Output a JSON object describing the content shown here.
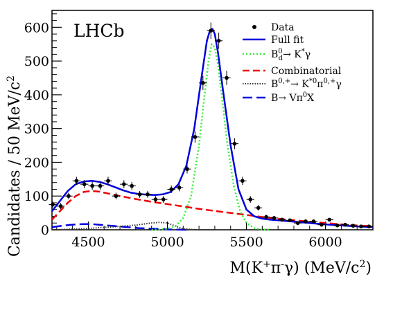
{
  "chart_data": {
    "type": "line",
    "experiment_label": "LHCb",
    "xlabel": "M(K⁺π⁻γ) (MeV/c²)",
    "ylabel": "Candidates / 50 MeV/c²",
    "xlim": [
      4270,
      6300
    ],
    "ylim": [
      0,
      650
    ],
    "x_ticks": [
      4500,
      5000,
      5500,
      6000
    ],
    "y_ticks": [
      0,
      100,
      200,
      300,
      400,
      500,
      600
    ],
    "legend_position": "top-right",
    "grid": false,
    "points": {
      "name": "Data",
      "x": [
        4275,
        4325,
        4375,
        4425,
        4475,
        4525,
        4575,
        4625,
        4675,
        4725,
        4775,
        4825,
        4875,
        4925,
        4975,
        5025,
        5075,
        5125,
        5175,
        5225,
        5275,
        5325,
        5375,
        5425,
        5475,
        5525,
        5575,
        5625,
        5675,
        5725,
        5775,
        5825,
        5875,
        5925,
        5975,
        6025,
        6075,
        6125,
        6175,
        6225,
        6275
      ],
      "y": [
        75,
        70,
        100,
        145,
        135,
        130,
        130,
        145,
        100,
        135,
        130,
        105,
        105,
        90,
        90,
        120,
        125,
        180,
        275,
        435,
        590,
        560,
        450,
        255,
        145,
        90,
        65,
        38,
        35,
        30,
        28,
        20,
        25,
        25,
        15,
        30,
        13,
        15,
        12,
        10,
        10
      ],
      "err": [
        9,
        9,
        10,
        12,
        12,
        12,
        12,
        12,
        10,
        12,
        12,
        10,
        10,
        10,
        10,
        11,
        11,
        13,
        17,
        21,
        24,
        24,
        21,
        16,
        12,
        10,
        8,
        6,
        6,
        6,
        5,
        5,
        5,
        5,
        4,
        5,
        4,
        4,
        4,
        3,
        3
      ]
    },
    "series": [
      {
        "name": "Full fit",
        "color": "#0000dd",
        "style": "solid",
        "x": [
          4270,
          4320,
          4370,
          4420,
          4470,
          4520,
          4570,
          4620,
          4670,
          4720,
          4770,
          4820,
          4870,
          4920,
          4970,
          5020,
          5070,
          5120,
          5170,
          5220,
          5250,
          5270,
          5285,
          5300,
          5320,
          5350,
          5400,
          5450,
          5500,
          5550,
          5600,
          5650,
          5700,
          5800,
          5900,
          6000,
          6100,
          6200,
          6300
        ],
        "y": [
          55,
          85,
          115,
          135,
          143,
          145,
          142,
          135,
          126,
          117,
          110,
          106,
          104,
          103,
          105,
          112,
          135,
          190,
          300,
          465,
          560,
          592,
          595,
          580,
          525,
          420,
          250,
          120,
          60,
          40,
          33,
          30,
          28,
          24,
          20,
          16,
          13,
          10,
          8
        ]
      },
      {
        "name": "B⁰ₔ→ K*γ",
        "color": "#33ee33",
        "style": "dotted",
        "x": [
          4900,
          4950,
          5000,
          5050,
          5100,
          5150,
          5200,
          5230,
          5260,
          5280,
          5300,
          5320,
          5350,
          5380,
          5420,
          5460,
          5500,
          5550,
          5600,
          5650
        ],
        "y": [
          0,
          1,
          3,
          10,
          35,
          100,
          250,
          380,
          500,
          550,
          540,
          490,
          375,
          250,
          130,
          55,
          20,
          5,
          1,
          0
        ]
      },
      {
        "name": "Combinatorial",
        "color": "#ee0000",
        "style": "dashed",
        "x": [
          4270,
          4320,
          4370,
          4420,
          4470,
          4520,
          4570,
          4620,
          4700,
          4800,
          4900,
          5000,
          5100,
          5200,
          5300,
          5400,
          5500,
          5600,
          5700,
          5800,
          5900,
          6000,
          6100,
          6200,
          6300
        ],
        "y": [
          30,
          55,
          80,
          100,
          112,
          115,
          113,
          108,
          100,
          91,
          83,
          76,
          69,
          62,
          56,
          50,
          44,
          38,
          33,
          28,
          24,
          20,
          16,
          13,
          10
        ]
      },
      {
        "name": "B⁰‧⁺→ K*⁰π⁰‧⁺γ",
        "color": "#333333",
        "style": "dotted",
        "x": [
          4270,
          4400,
          4500,
          4600,
          4700,
          4800,
          4850,
          4900,
          4950,
          5000,
          5030,
          5060,
          5100,
          5150,
          5200,
          5300
        ],
        "y": [
          0,
          2,
          4,
          7,
          10,
          14,
          17,
          20,
          22,
          20,
          15,
          9,
          3,
          1,
          0,
          0
        ]
      },
      {
        "name": "B→ Vπ⁰X",
        "color": "#0000dd",
        "style": "longdash",
        "x": [
          4270,
          4320,
          4370,
          4420,
          4470,
          4520,
          4570,
          4620,
          4670,
          4720,
          4770,
          4820,
          4870,
          4920,
          4970,
          5020,
          5070,
          5120
        ],
        "y": [
          8,
          11,
          14,
          16,
          17,
          17,
          15,
          13,
          11,
          9,
          7,
          5,
          4,
          3,
          2,
          1,
          0.5,
          0
        ]
      }
    ],
    "legend": [
      {
        "label": "Data",
        "sup": "",
        "sub": ""
      },
      {
        "label": "Full fit",
        "sup": "",
        "sub": ""
      },
      {
        "label": "B",
        "sup": "0",
        "sub": "d",
        "tail": "→ K",
        "tail_sup": "*",
        "tail2": "γ"
      },
      {
        "label": "Combinatorial",
        "sup": "",
        "sub": ""
      },
      {
        "label": "B",
        "sup": "0,+",
        "sub": "",
        "tail": "→ K",
        "tail_sup": "*0",
        "tail2": "π",
        "tail2_sup": "0,+",
        "tail3": "γ"
      },
      {
        "label": "B→ Vπ",
        "sup": "0",
        "sub": "",
        "tail": "X"
      }
    ]
  }
}
